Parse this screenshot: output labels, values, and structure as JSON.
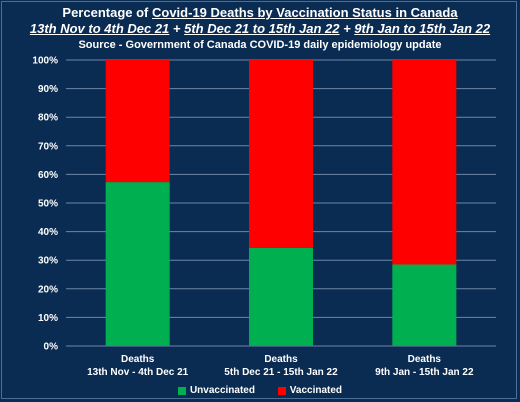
{
  "title": {
    "line1_pre": "Percentage of ",
    "line1_link": "Covid-19 Deaths by Vaccination Status in Canada",
    "line2_a": "13th Nov to 4th Dec 21",
    "line2_sep1": " + ",
    "line2_b": "5th Dec 21 to 15th Jan 22",
    "line2_sep2": " + ",
    "line2_c": "9th Jan to 15th Jan 22",
    "source": "Source - Government of Canada COVID-19 daily epidemiology update"
  },
  "colors": {
    "background": "#0a2b52",
    "unvaccinated": "#00b050",
    "vaccinated": "#ff0000",
    "gridline": "#6c87a6"
  },
  "chart_data": {
    "type": "bar",
    "stacked": true,
    "categories": [
      [
        "Deaths",
        "13th Nov - 4th Dec 21"
      ],
      [
        "Deaths",
        "5th Dec 21 - 15th Jan 22"
      ],
      [
        "Deaths",
        "9th Jan - 15th Jan 22"
      ]
    ],
    "series": [
      {
        "name": "Unvaccinated",
        "values": [
          57.3,
          34.3,
          28.5
        ]
      },
      {
        "name": "Vaccinated",
        "values": [
          42.7,
          65.7,
          71.5
        ]
      }
    ],
    "y_ticks": [
      "0%",
      "10%",
      "20%",
      "30%",
      "40%",
      "50%",
      "60%",
      "70%",
      "80%",
      "90%",
      "100%"
    ],
    "ylim": [
      0,
      100
    ],
    "grid": true,
    "legend_position": "bottom"
  }
}
